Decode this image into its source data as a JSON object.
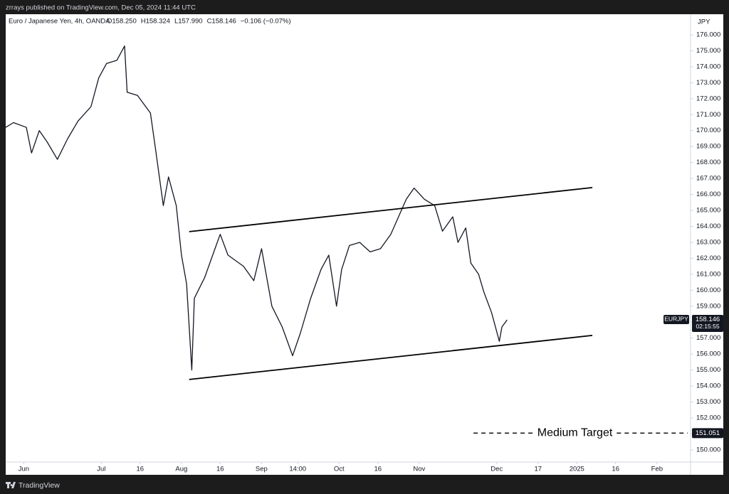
{
  "chart_data": {
    "type": "line",
    "publisher_note": "zrrays published on TradingView.com, Dec 05, 2024 11:44 UTC",
    "title": "Euro / Japanese Yen, 4h, OANDA",
    "ohlc_text": [
      "O158.250",
      "H158.324",
      "L157.990",
      "C158.146",
      "−0.106 (−0.07%)"
    ],
    "axis_unit": "JPY",
    "symbol": "EURJPY",
    "last_price": 158.146,
    "last_price_label": "158.146",
    "countdown": "02:15:55",
    "brand": "TradingView",
    "color": "#131722",
    "grid": false,
    "x": [
      "2024-05-25",
      "2024-05-28",
      "2024-06-02",
      "2024-06-04",
      "2024-06-07",
      "2024-06-10",
      "2024-06-14",
      "2024-06-18",
      "2024-06-22",
      "2024-06-27",
      "2024-06-30",
      "2024-07-03",
      "2024-07-07",
      "2024-07-10",
      "2024-07-11",
      "2024-07-15",
      "2024-07-20",
      "2024-07-22",
      "2024-07-25",
      "2024-07-27",
      "2024-07-30",
      "2024-08-01",
      "2024-08-03",
      "2024-08-05",
      "2024-08-06",
      "2024-08-10",
      "2024-08-14",
      "2024-08-16",
      "2024-08-19",
      "2024-08-25",
      "2024-08-29",
      "2024-09-01",
      "2024-09-05",
      "2024-09-09",
      "2024-09-13",
      "2024-09-16",
      "2024-09-20",
      "2024-09-24",
      "2024-09-27",
      "2024-09-30",
      "2024-10-02",
      "2024-10-05",
      "2024-10-09",
      "2024-10-13",
      "2024-10-17",
      "2024-10-21",
      "2024-10-24",
      "2024-10-27",
      "2024-10-30",
      "2024-11-03",
      "2024-11-07",
      "2024-11-10",
      "2024-11-14",
      "2024-11-16",
      "2024-11-19",
      "2024-11-21",
      "2024-11-24",
      "2024-11-26",
      "2024-11-29",
      "2024-12-02",
      "2024-12-03",
      "2024-12-05"
    ],
    "values": [
      170.2,
      170.5,
      170.2,
      168.6,
      170.0,
      169.3,
      168.2,
      169.5,
      170.6,
      171.5,
      173.3,
      174.2,
      174.4,
      175.3,
      172.4,
      172.2,
      171.1,
      168.8,
      165.3,
      167.1,
      165.3,
      162.2,
      160.4,
      155.0,
      159.5,
      160.8,
      162.6,
      163.5,
      162.2,
      161.5,
      160.6,
      162.6,
      159.0,
      157.7,
      155.9,
      157.3,
      159.5,
      161.3,
      162.2,
      159.0,
      161.3,
      162.8,
      163.0,
      162.4,
      162.6,
      163.5,
      164.6,
      165.7,
      166.4,
      165.7,
      165.3,
      163.7,
      164.6,
      163.0,
      163.9,
      161.7,
      161.0,
      159.9,
      158.6,
      156.8,
      157.7,
      158.146
    ],
    "trend_lines": [
      {
        "x": [
          "2024-08-04",
          "2025-01-07"
        ],
        "values": [
          163.67,
          166.43
        ]
      },
      {
        "x": [
          "2024-08-04",
          "2025-01-07"
        ],
        "values": [
          154.41,
          157.17
        ]
      }
    ],
    "target": {
      "label": "Medium Target",
      "value": 151.051,
      "value_label": "151.051",
      "x_start": "2024-11-22"
    },
    "xlim": [
      "2024-05-25",
      "2025-02-14"
    ],
    "xticks": [
      {
        "value": "2024-06-01",
        "label": "Jun"
      },
      {
        "value": "2024-07-01",
        "label": "Jul"
      },
      {
        "value": "2024-07-16",
        "label": "16"
      },
      {
        "value": "2024-08-01",
        "label": "Aug"
      },
      {
        "value": "2024-08-16",
        "label": "16"
      },
      {
        "value": "2024-09-01",
        "label": "Sep"
      },
      {
        "value": "2024-09-15",
        "label": "14:00"
      },
      {
        "value": "2024-10-01",
        "label": "Oct"
      },
      {
        "value": "2024-10-16",
        "label": "16"
      },
      {
        "value": "2024-11-01",
        "label": "Nov"
      },
      {
        "value": "2024-12-01",
        "label": "Dec"
      },
      {
        "value": "2024-12-17",
        "label": "17"
      },
      {
        "value": "2025-01-01",
        "label": "2025"
      },
      {
        "value": "2025-01-16",
        "label": "16"
      },
      {
        "value": "2025-02-01",
        "label": "Feb"
      }
    ],
    "ylim": [
      149.24,
      177.29
    ],
    "yticks": [
      {
        "value": 150,
        "label": "150.000"
      },
      {
        "value": 151,
        "label": "151.000"
      },
      {
        "value": 152,
        "label": "152.000"
      },
      {
        "value": 153,
        "label": "153.000"
      },
      {
        "value": 154,
        "label": "154.000"
      },
      {
        "value": 155,
        "label": "155.000"
      },
      {
        "value": 156,
        "label": "156.000"
      },
      {
        "value": 157,
        "label": "157.000"
      },
      {
        "value": 158,
        "label": "158.000"
      },
      {
        "value": 159,
        "label": "159.000"
      },
      {
        "value": 160,
        "label": "160.000"
      },
      {
        "value": 161,
        "label": "161.000"
      },
      {
        "value": 162,
        "label": "162.000"
      },
      {
        "value": 163,
        "label": "163.000"
      },
      {
        "value": 164,
        "label": "164.000"
      },
      {
        "value": 165,
        "label": "165.000"
      },
      {
        "value": 166,
        "label": "166.000"
      },
      {
        "value": 167,
        "label": "167.000"
      },
      {
        "value": 168,
        "label": "168.000"
      },
      {
        "value": 169,
        "label": "169.000"
      },
      {
        "value": 170,
        "label": "170.000"
      },
      {
        "value": 171,
        "label": "171.000"
      },
      {
        "value": 172,
        "label": "172.000"
      },
      {
        "value": 173,
        "label": "173.000"
      },
      {
        "value": 174,
        "label": "174.000"
      },
      {
        "value": 175,
        "label": "175.000"
      },
      {
        "value": 176,
        "label": "176.000"
      }
    ]
  }
}
